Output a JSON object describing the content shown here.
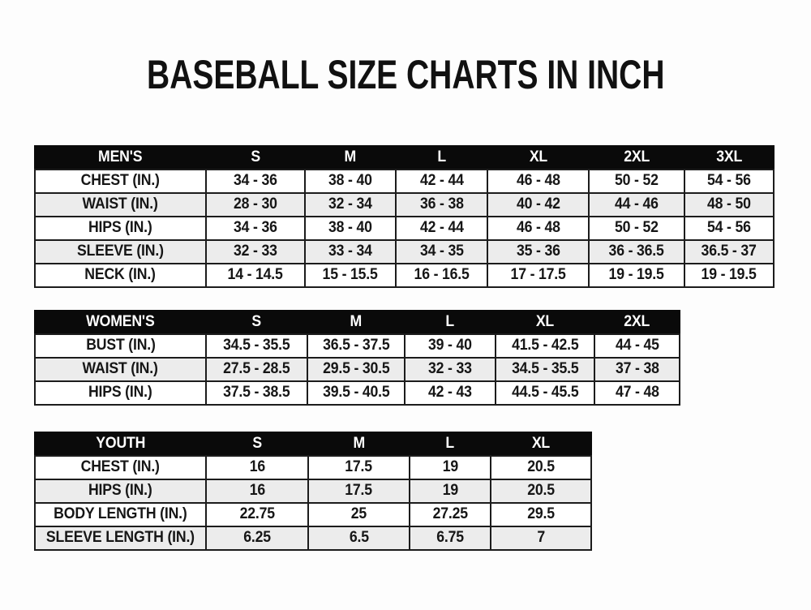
{
  "page": {
    "title": "BASEBALL SIZE CHARTS IN INCH",
    "unit": "INCH"
  },
  "colors": {
    "header_bg": "#0a0a0a",
    "header_text": "#ffffff",
    "row_bg": "#ffffff",
    "row_alt_bg": "#ececec",
    "border": "#1c1c1c",
    "text": "#161616",
    "page_bg": "#fdfdfd"
  },
  "tables": [
    {
      "id": "mens",
      "header": [
        "MEN'S",
        "S",
        "M",
        "L",
        "XL",
        "2XL",
        "3XL"
      ],
      "rows": [
        [
          "CHEST (IN.)",
          "34 - 36",
          "38 - 40",
          "42 - 44",
          "46 - 48",
          "50 - 52",
          "54 - 56"
        ],
        [
          "WAIST (IN.)",
          "28 - 30",
          "32 - 34",
          "36 - 38",
          "40 - 42",
          "44 - 46",
          "48 - 50"
        ],
        [
          "HIPS (IN.)",
          "34 - 36",
          "38 - 40",
          "42 - 44",
          "46 - 48",
          "50 - 52",
          "54 - 56"
        ],
        [
          "SLEEVE (IN.)",
          "32 - 33",
          "33 - 34",
          "34 - 35",
          "35 - 36",
          "36 - 36.5",
          "36.5 - 37"
        ],
        [
          "NECK (IN.)",
          "14 - 14.5",
          "15 - 15.5",
          "16 - 16.5",
          "17 - 17.5",
          "19 - 19.5",
          "19 - 19.5"
        ]
      ]
    },
    {
      "id": "womens",
      "header": [
        "WOMEN'S",
        "S",
        "M",
        "L",
        "XL",
        "2XL"
      ],
      "rows": [
        [
          "BUST (IN.)",
          "34.5 - 35.5",
          "36.5 - 37.5",
          "39 - 40",
          "41.5 - 42.5",
          "44 - 45"
        ],
        [
          "WAIST (IN.)",
          "27.5 - 28.5",
          "29.5 - 30.5",
          "32 - 33",
          "34.5 - 35.5",
          "37 - 38"
        ],
        [
          "HIPS (IN.)",
          "37.5 - 38.5",
          "39.5 - 40.5",
          "42 - 43",
          "44.5 - 45.5",
          "47 - 48"
        ]
      ]
    },
    {
      "id": "youth",
      "header": [
        "YOUTH",
        "S",
        "M",
        "L",
        "XL"
      ],
      "rows": [
        [
          "CHEST (IN.)",
          "16",
          "17.5",
          "19",
          "20.5"
        ],
        [
          "HIPS (IN.)",
          "16",
          "17.5",
          "19",
          "20.5"
        ],
        [
          "BODY LENGTH (IN.)",
          "22.75",
          "25",
          "27.25",
          "29.5"
        ],
        [
          "SLEEVE LENGTH (IN.)",
          "6.25",
          "6.5",
          "6.75",
          "7"
        ]
      ]
    }
  ]
}
